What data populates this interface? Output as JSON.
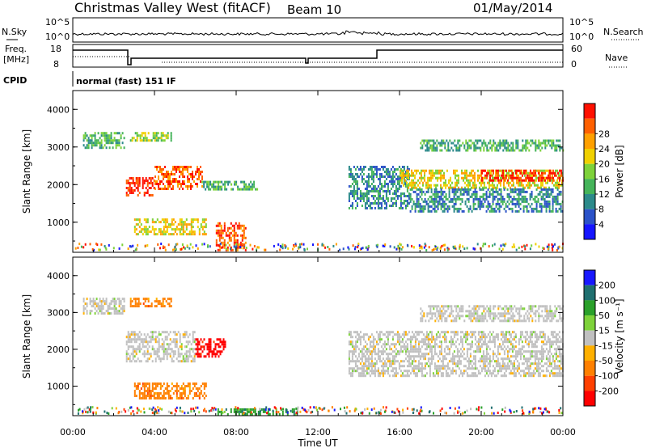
{
  "header": {
    "station": "Christmas Valley West (fitACF)",
    "beam": "Beam 10",
    "date": "01/May/2014"
  },
  "sky_panel": {
    "left_label": "N.Sky",
    "right_label": "N.Search",
    "left_ticks": [
      "10^5",
      "10^0"
    ],
    "right_ticks": [
      "10^5",
      "10^0"
    ]
  },
  "freq_panel": {
    "left_label_1": "Freq.",
    "left_label_2": "[MHz]",
    "right_label": "Nave",
    "left_ticks": [
      "18",
      "8"
    ],
    "right_ticks": [
      "60",
      "0"
    ]
  },
  "cpid": {
    "label": "CPID",
    "value": "normal (fast) 151 IF"
  },
  "colors": {
    "power": [
      "#1515ff",
      "#2b52c8",
      "#2c8a8a",
      "#45b45a",
      "#7ed23a",
      "#f0d000",
      "#ffa000",
      "#ff6000",
      "#ff1000"
    ],
    "velocity": [
      "#1818ff",
      "#1f6f6f",
      "#2aa02a",
      "#7ed23a",
      "#c0c0c0",
      "#ffb000",
      "#ff8000",
      "#ff4000",
      "#ff0000"
    ]
  },
  "chart_data": [
    {
      "type": "heatmap",
      "title": "Power",
      "ylabel": "Slant Range [km]",
      "ylim": [
        200,
        4500
      ],
      "xlim": [
        "00:00",
        "24:00"
      ],
      "yticks": [
        "1000",
        "2000",
        "3000",
        "4000"
      ],
      "colorbar": {
        "label": "Power [dB]",
        "ticks": [
          "4",
          "8",
          "12",
          "16",
          "20",
          "24",
          "28"
        ],
        "range": [
          0,
          30
        ]
      },
      "echo_regions": [
        {
          "t0": 0.5,
          "t1": 2.5,
          "r0": 2950,
          "r1": 3400,
          "level": 3
        },
        {
          "t0": 2.8,
          "t1": 4.8,
          "r0": 3200,
          "r1": 3400,
          "level": 4
        },
        {
          "t0": 2.6,
          "t1": 4.0,
          "r0": 1700,
          "r1": 2200,
          "level": 8
        },
        {
          "t0": 4.0,
          "t1": 6.3,
          "r0": 1900,
          "r1": 2500,
          "level": 7
        },
        {
          "t0": 6.3,
          "t1": 9.0,
          "r0": 1900,
          "r1": 2100,
          "level": 3
        },
        {
          "t0": 3.0,
          "t1": 6.5,
          "r0": 650,
          "r1": 1100,
          "level": 5
        },
        {
          "t0": 7.0,
          "t1": 8.5,
          "r0": 250,
          "r1": 1000,
          "level": 7
        },
        {
          "t0": 13.5,
          "t1": 16.5,
          "r0": 1400,
          "r1": 2500,
          "level": 2
        },
        {
          "t0": 16.0,
          "t1": 24.0,
          "r0": 1900,
          "r1": 2400,
          "level": 5
        },
        {
          "t0": 20.0,
          "t1": 24.0,
          "r0": 2100,
          "r1": 2400,
          "level": 8
        },
        {
          "t0": 16.5,
          "t1": 24.0,
          "r0": 1300,
          "r1": 1900,
          "level": 2
        },
        {
          "t0": 17.0,
          "t1": 24.0,
          "r0": 2900,
          "r1": 3200,
          "level": 3
        }
      ]
    },
    {
      "type": "heatmap",
      "title": "Velocity",
      "ylabel": "Slant Range [km]",
      "xlabel": "Time UT",
      "ylim": [
        200,
        4500
      ],
      "xlim": [
        "00:00",
        "24:00"
      ],
      "yticks": [
        "1000",
        "2000",
        "3000",
        "4000"
      ],
      "xticks": [
        "00:00",
        "04:00",
        "08:00",
        "12:00",
        "16:00",
        "20:00",
        "00:00"
      ],
      "colorbar": {
        "label": "Velocity [m s⁻¹]",
        "ticks": [
          "200",
          "100",
          "50",
          "15",
          "-15",
          "-50",
          "-100",
          "-200"
        ],
        "range": [
          -250,
          250
        ]
      },
      "echo_regions": [
        {
          "t0": 0.5,
          "t1": 2.5,
          "r0": 2950,
          "r1": 3400,
          "velocity": 0
        },
        {
          "t0": 2.8,
          "t1": 4.8,
          "r0": 3200,
          "r1": 3400,
          "velocity": -60
        },
        {
          "t0": 2.6,
          "t1": 6.0,
          "r0": 1700,
          "r1": 2500,
          "velocity": 0
        },
        {
          "t0": 6.0,
          "t1": 7.5,
          "r0": 1800,
          "r1": 2300,
          "velocity": -220
        },
        {
          "t0": 3.0,
          "t1": 6.5,
          "r0": 650,
          "r1": 1100,
          "velocity": -80
        },
        {
          "t0": 7.0,
          "t1": 11.0,
          "r0": 250,
          "r1": 400,
          "velocity": 40
        },
        {
          "t0": 13.5,
          "t1": 24.0,
          "r0": 1300,
          "r1": 2500,
          "velocity": 0
        },
        {
          "t0": 17.0,
          "t1": 24.0,
          "r0": 2800,
          "r1": 3200,
          "velocity": 0
        }
      ]
    }
  ]
}
